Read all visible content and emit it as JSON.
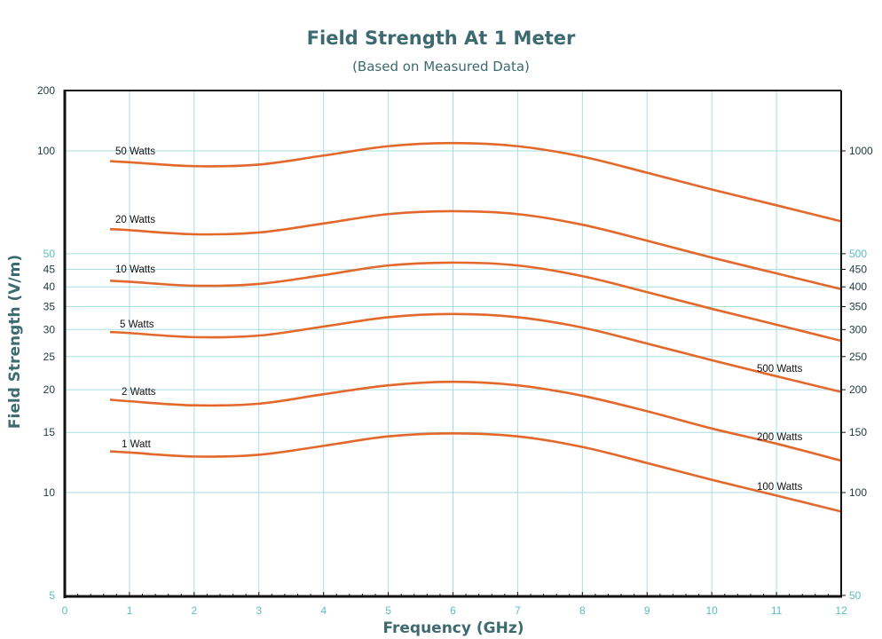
{
  "chart_data": {
    "type": "line",
    "title": "Field Strength At 1 Meter",
    "subtitle": "(Based on Measured Data)",
    "xlabel": "Frequency (GHz)",
    "ylabel": "Field Strength (V/m)",
    "xlim": [
      0,
      12
    ],
    "ylim": [
      5,
      200
    ],
    "yscale": "log",
    "grid": true,
    "x_ticks": [
      "0",
      "1",
      "2",
      "3",
      "4",
      "5",
      "6",
      "7",
      "8",
      "9",
      "10",
      "11",
      "12"
    ],
    "y_ticks_left": [
      "200",
      "100",
      "50",
      "45",
      "40",
      "35",
      "30",
      "25",
      "20",
      "15",
      "10",
      "5"
    ],
    "y_ticks_left_values": [
      200,
      100,
      50,
      45,
      40,
      35,
      30,
      25,
      20,
      15,
      10,
      5
    ],
    "y_ticks_right": [
      "1000",
      "500",
      "450",
      "400",
      "350",
      "300",
      "250",
      "200",
      "150",
      "100",
      "50"
    ],
    "y_ticks_right_values": [
      100,
      50,
      45,
      40,
      35,
      30,
      25,
      20,
      15,
      10,
      5
    ],
    "x": [
      0.7,
      1,
      2,
      3,
      4,
      5,
      6,
      7,
      8,
      9,
      10,
      11,
      12
    ],
    "series": [
      {
        "name": "50 Watts",
        "values": [
          93.3,
          92.6,
          90.2,
          91.2,
          96.9,
          103.2,
          105.4,
          103.2,
          96.2,
          86.3,
          77.1,
          69.3,
          62.2
        ]
      },
      {
        "name": "20 Watts",
        "values": [
          59.0,
          58.6,
          57.0,
          57.7,
          61.3,
          65.3,
          66.6,
          65.3,
          60.8,
          54.6,
          48.7,
          43.8,
          39.4
        ]
      },
      {
        "name": "10 Watts",
        "values": [
          41.7,
          41.4,
          40.3,
          40.8,
          43.3,
          46.2,
          47.1,
          46.2,
          43.0,
          38.6,
          34.5,
          31.0,
          27.8
        ]
      },
      {
        "name": "5 Watts",
        "values": [
          29.5,
          29.3,
          28.5,
          28.8,
          30.6,
          32.6,
          33.3,
          32.6,
          30.4,
          27.3,
          24.4,
          21.9,
          19.7
        ]
      },
      {
        "name": "2 Watts",
        "values": [
          18.7,
          18.5,
          18.0,
          18.2,
          19.4,
          20.6,
          21.1,
          20.6,
          19.2,
          17.3,
          15.4,
          13.9,
          12.4
        ]
      },
      {
        "name": "1 Watt",
        "values": [
          13.2,
          13.1,
          12.75,
          12.9,
          13.7,
          14.6,
          14.9,
          14.6,
          13.6,
          12.2,
          10.9,
          9.8,
          8.8
        ]
      }
    ],
    "annotations": [
      "500 Watts",
      "200 Watts",
      "100 Watts"
    ],
    "colors": {
      "curve": "#e2682c",
      "grid": "#a9dde1",
      "title": "#3d6a70"
    }
  }
}
